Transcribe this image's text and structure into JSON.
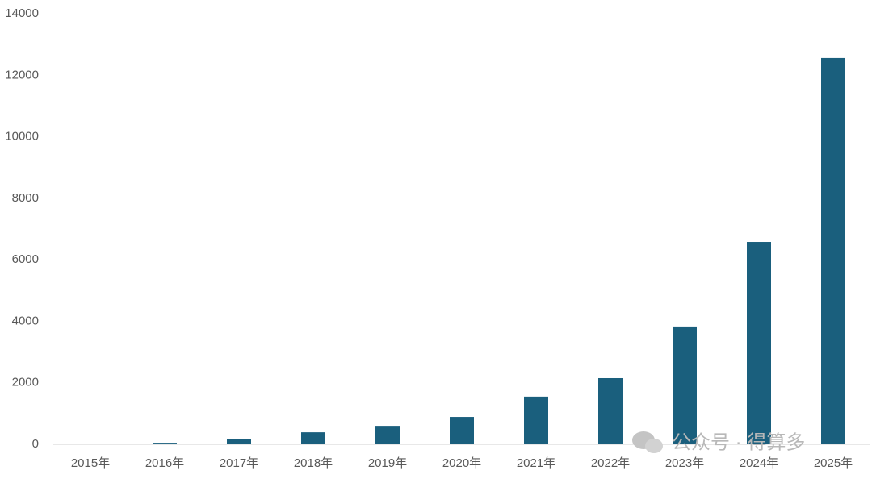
{
  "chart_data": {
    "type": "bar",
    "categories": [
      "2015年",
      "2016年",
      "2017年",
      "2018年",
      "2019年",
      "2020年",
      "2021年",
      "2022年",
      "2023年",
      "2024年",
      "2025年"
    ],
    "values": [
      10,
      50,
      180,
      390,
      600,
      890,
      1550,
      2150,
      3830,
      6580,
      12560
    ],
    "color": "#1a5f7d",
    "ylim": [
      0,
      14000
    ],
    "yticks": [
      0,
      2000,
      4000,
      6000,
      8000,
      10000,
      12000,
      14000
    ],
    "grid": false,
    "watermark": "公众号 · 得算多"
  }
}
